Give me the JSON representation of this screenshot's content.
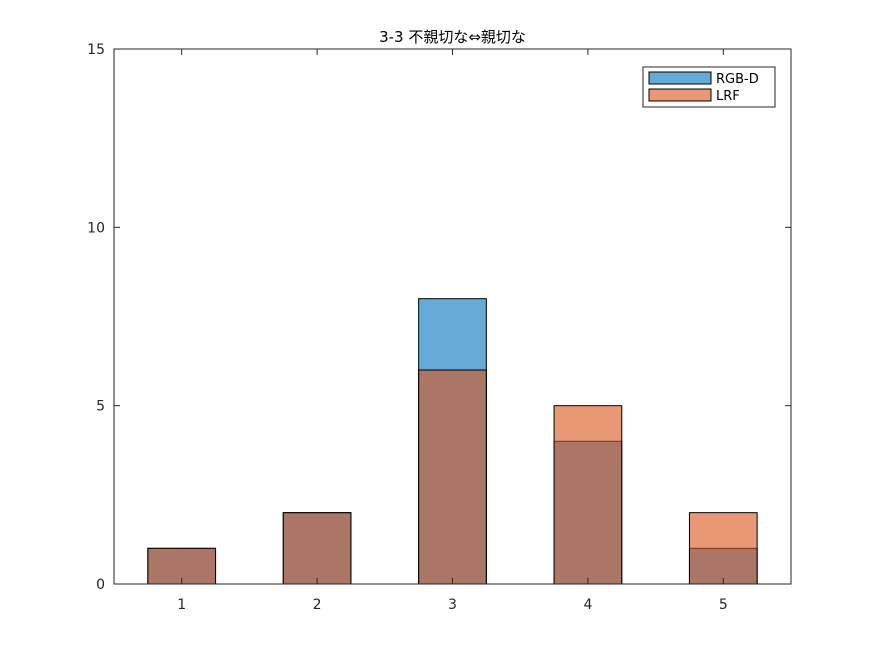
{
  "chart_data": {
    "type": "bar",
    "title": "3-3 不親切な⇔親切な",
    "xlabel": "",
    "ylabel": "",
    "categories": [
      "1",
      "2",
      "3",
      "4",
      "5"
    ],
    "series": [
      {
        "name": "RGB-D",
        "values": [
          1,
          2,
          8,
          4,
          1
        ],
        "color": "#0072BD"
      },
      {
        "name": "LRF",
        "values": [
          1,
          2,
          6,
          5,
          2
        ],
        "color": "#D95319"
      }
    ],
    "overlay": true,
    "opacity": 0.6,
    "xlim": [
      0.5,
      5.5
    ],
    "ylim": [
      0,
      15
    ],
    "yticks": [
      0,
      5,
      10,
      15
    ],
    "grid": false,
    "legend_position": "top-right"
  }
}
